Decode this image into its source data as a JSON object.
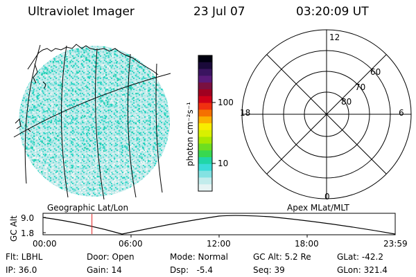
{
  "header": {
    "title": "Ultraviolet Imager",
    "date": "23 Jul 07",
    "time": "03:20:09 UT"
  },
  "colorbar": {
    "unit_label": "photon cm⁻²s⁻¹",
    "tick_labels": [
      "100",
      "10"
    ],
    "colors": [
      "#000010",
      "#1a0a3a",
      "#3a1460",
      "#5a1a7a",
      "#7a1040",
      "#a00020",
      "#d00018",
      "#f03010",
      "#f57000",
      "#fbb000",
      "#f8ec00",
      "#d8f000",
      "#a8e800",
      "#6ede20",
      "#38d850",
      "#20d6a8",
      "#3adcd8",
      "#84e2e2",
      "#c2ecec",
      "#e6f4f4"
    ]
  },
  "map": {
    "label": "Geographic Lat/Lon"
  },
  "polar": {
    "label": "Apex MLat/MLT",
    "mlt_labels": [
      "12",
      "18",
      "6",
      "0"
    ],
    "lat_labels": [
      "60",
      "70",
      "80"
    ]
  },
  "timeline": {
    "axis_label": "GC Alt",
    "y_ticks": [
      "9.0",
      "1.8"
    ],
    "x_ticks": [
      "00:00",
      "06:00",
      "12:00",
      "18:00",
      "23:59"
    ],
    "marker_time": "03:20",
    "marker_color": "#e02020"
  },
  "info": {
    "flt": "Flt: LBHL",
    "ip": "IP: 36.0",
    "door": "Door: Open",
    "gain": "Gain: 14",
    "mode": "Mode: Normal",
    "dsp": "Dsp:   -5.4",
    "gc_alt": "GC Alt: 5.2 Re",
    "seq": "Seq: 39",
    "glat": "GLat: -42.2",
    "glon": "GLon: 321.4"
  }
}
